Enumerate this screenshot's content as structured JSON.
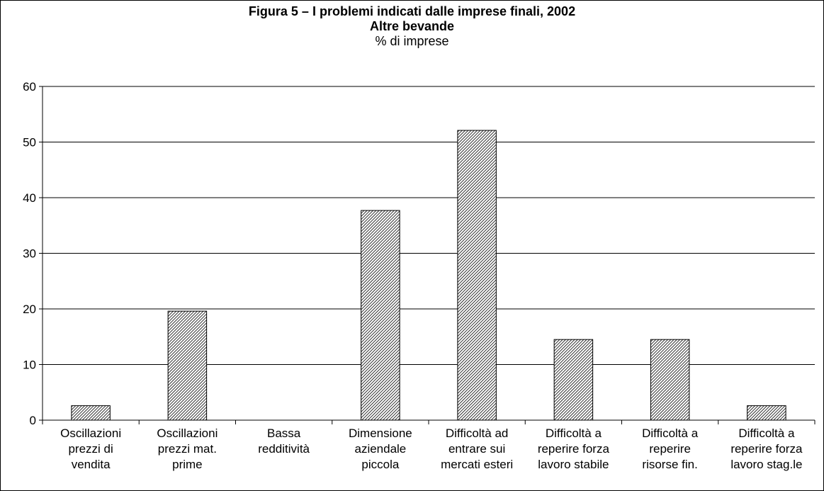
{
  "title": "Figura 5 – I problemi indicati dalle imprese finali, 2002",
  "subtitle_line1": "Altre bevande",
  "subtitle_line2": "% di imprese",
  "chart_data": {
    "type": "bar",
    "title": "Figura 5 – I problemi indicati dalle imprese finali, 2002",
    "subtitle": "Altre bevande",
    "ylabel": "% di imprese",
    "xlabel": "",
    "ylim": [
      0,
      60
    ],
    "yticks": [
      0,
      10,
      20,
      30,
      40,
      50,
      60
    ],
    "grid": true,
    "categories": [
      [
        "Oscillazioni",
        "prezzi di",
        "vendita"
      ],
      [
        "Oscillazioni",
        "prezzi mat.",
        "prime"
      ],
      [
        "Bassa",
        "redditività"
      ],
      [
        "Dimensione",
        "aziendale",
        "piccola"
      ],
      [
        "Difficoltà ad",
        "entrare sui",
        "mercati esteri"
      ],
      [
        "Difficoltà a",
        "reperire forza",
        "lavoro stabile"
      ],
      [
        "Difficoltà a",
        "reperire",
        "risorse fin."
      ],
      [
        "Difficoltà a",
        "reperire forza",
        "lavoro stag.le"
      ]
    ],
    "values": [
      2.6,
      19.6,
      0,
      37.7,
      52.1,
      14.5,
      14.5,
      2.6
    ],
    "bar_pattern": "diagonal-hatch"
  }
}
